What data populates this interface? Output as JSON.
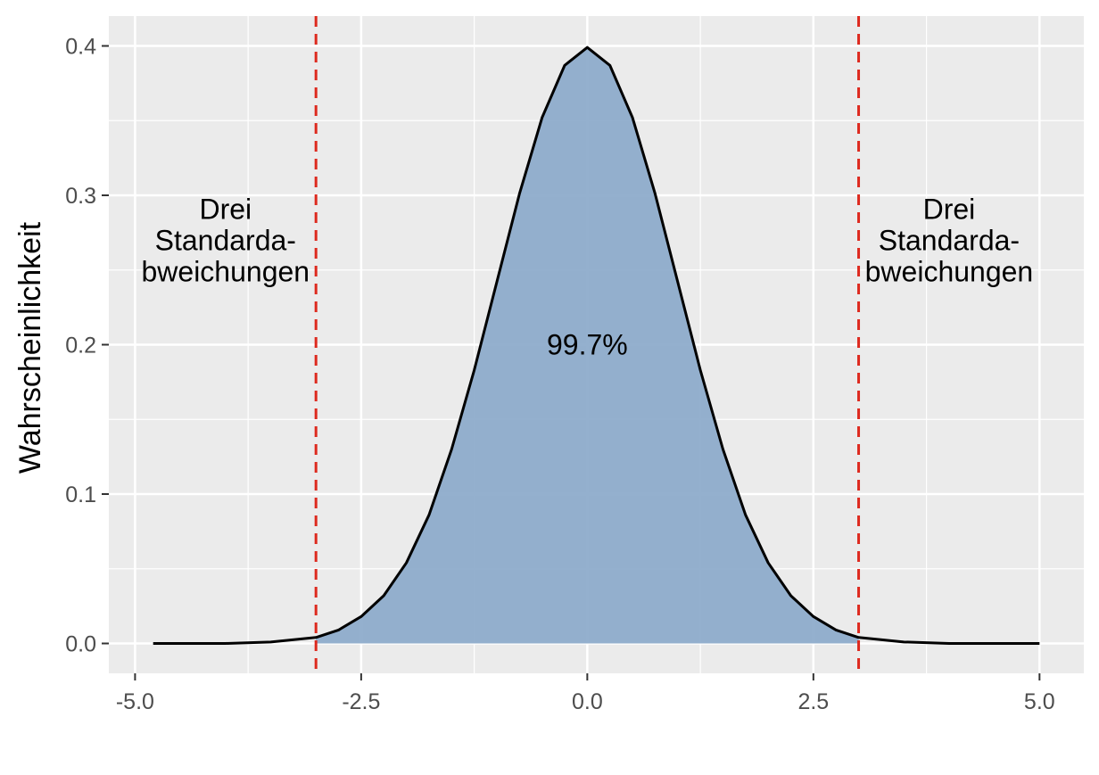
{
  "chart_data": {
    "type": "density",
    "y_label": "Wahrscheinlichkeit",
    "x": [
      -4.8,
      -4.5,
      -4,
      -3.5,
      -3,
      -2.75,
      -2.5,
      -2.25,
      -2,
      -1.75,
      -1.5,
      -1.25,
      -1,
      -0.75,
      -0.5,
      -0.25,
      0,
      0.25,
      0.5,
      0.75,
      1,
      1.25,
      1.5,
      1.75,
      2,
      2.25,
      2.5,
      2.75,
      3,
      3.5,
      4,
      4.5,
      5
    ],
    "series": [
      {
        "color": "#000000",
        "fill": "#8eaccb",
        "values": [
          0,
          0,
          0,
          0.001,
          0.004,
          0.009,
          0.018,
          0.032,
          0.054,
          0.086,
          0.13,
          0.183,
          0.242,
          0.301,
          0.352,
          0.387,
          0.399,
          0.387,
          0.352,
          0.301,
          0.242,
          0.183,
          0.13,
          0.086,
          0.054,
          0.032,
          0.018,
          0.009,
          0.004,
          0.001,
          0,
          0,
          0
        ]
      }
    ],
    "vlines": {
      "color": "#dd2a1f",
      "values": [
        -3,
        3
      ]
    },
    "annotations": [
      {
        "x": -4,
        "y": 0.27,
        "lines": [
          "Drei",
          "Standarda-",
          "bweichungen"
        ]
      },
      {
        "x": 4,
        "y": 0.27,
        "lines": [
          "Drei",
          "Standarda-",
          "bweichungen"
        ]
      },
      {
        "x": 0,
        "y": 0.2,
        "lines": [
          "99.7%"
        ]
      }
    ],
    "xlim": [
      -5.29,
      5.49
    ],
    "ylim": [
      -0.02,
      0.42
    ],
    "xticks": [
      {
        "value": -5,
        "label": "-5.0"
      },
      {
        "value": -2.5,
        "label": "-2.5"
      },
      {
        "value": 0,
        "label": "0.0"
      },
      {
        "value": 2.5,
        "label": "2.5"
      },
      {
        "value": 5,
        "label": "5.0"
      }
    ],
    "yticks": [
      {
        "value": 0,
        "label": "0.0"
      },
      0.1,
      0.2,
      0.3,
      0.4
    ],
    "x_minor_grid": [
      -3.75,
      -1.25,
      1.25,
      3.75
    ],
    "y_minor_grid": [
      0.05,
      0.15,
      0.25,
      0.35
    ],
    "grid": true
  }
}
